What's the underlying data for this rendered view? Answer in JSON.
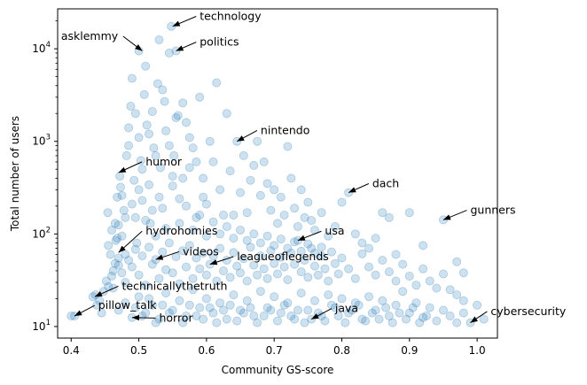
{
  "chart_data": {
    "type": "scatter",
    "xlabel": "Community GS-score",
    "ylabel": "Total number of users",
    "xlim": [
      0.38,
      1.03
    ],
    "ylim": [
      7.5,
      27000
    ],
    "yscale": "log",
    "grid": false,
    "point_color": "#1f77b4",
    "point_alpha": 0.22,
    "x_ticks": [
      {
        "value": 0.4,
        "label": "0.4"
      },
      {
        "value": 0.5,
        "label": "0.5"
      },
      {
        "value": 0.6,
        "label": "0.6"
      },
      {
        "value": 0.7,
        "label": "0.7"
      },
      {
        "value": 0.8,
        "label": "0.8"
      },
      {
        "value": 0.9,
        "label": "0.9"
      },
      {
        "value": 1.0,
        "label": "1.0"
      }
    ],
    "y_ticks": [
      {
        "value": 10,
        "base": "10",
        "exp": "1"
      },
      {
        "value": 100,
        "base": "10",
        "exp": "2"
      },
      {
        "value": 1000,
        "base": "10",
        "exp": "3"
      },
      {
        "value": 10000,
        "base": "10",
        "exp": "4"
      }
    ],
    "annotations": [
      {
        "label": "technology",
        "x": 0.55,
        "y": 17500,
        "text_x": 0.59,
        "text_y": 20500
      },
      {
        "label": "asklemmy",
        "x": 0.505,
        "y": 9500,
        "text_x": 0.385,
        "text_y": 12500
      },
      {
        "label": "politics",
        "x": 0.555,
        "y": 9500,
        "text_x": 0.59,
        "text_y": 10800
      },
      {
        "label": "nintendo",
        "x": 0.645,
        "y": 1000,
        "text_x": 0.68,
        "text_y": 1200
      },
      {
        "label": "humor",
        "x": 0.47,
        "y": 460,
        "text_x": 0.51,
        "text_y": 550
      },
      {
        "label": "dach",
        "x": 0.81,
        "y": 280,
        "text_x": 0.845,
        "text_y": 320
      },
      {
        "label": "gunners",
        "x": 0.95,
        "y": 142,
        "text_x": 0.99,
        "text_y": 165
      },
      {
        "label": "hydrohomies",
        "x": 0.47,
        "y": 63,
        "text_x": 0.51,
        "text_y": 98
      },
      {
        "label": "usa",
        "x": 0.735,
        "y": 85,
        "text_x": 0.775,
        "text_y": 98
      },
      {
        "label": "videos",
        "x": 0.525,
        "y": 53,
        "text_x": 0.565,
        "text_y": 59
      },
      {
        "label": "leagueoflegends",
        "x": 0.605,
        "y": 47,
        "text_x": 0.645,
        "text_y": 52
      },
      {
        "label": "technicallythetruth",
        "x": 0.435,
        "y": 21,
        "text_x": 0.475,
        "text_y": 25
      },
      {
        "label": "pillow_talk",
        "x": 0.405,
        "y": 13,
        "text_x": 0.44,
        "text_y": 15.5
      },
      {
        "label": "java",
        "x": 0.755,
        "y": 12,
        "text_x": 0.79,
        "text_y": 14.3
      },
      {
        "label": "horror",
        "x": 0.49,
        "y": 12.5,
        "text_x": 0.53,
        "text_y": 11.3
      },
      {
        "label": "cybersecurity",
        "x": 0.99,
        "y": 11,
        "text_x": 1.02,
        "text_y": 13.3
      }
    ],
    "points": [
      [
        0.4,
        13
      ],
      [
        0.405,
        13
      ],
      [
        0.432,
        21
      ],
      [
        0.436,
        22
      ],
      [
        0.438,
        17
      ],
      [
        0.442,
        19
      ],
      [
        0.445,
        14
      ],
      [
        0.448,
        24
      ],
      [
        0.452,
        31
      ],
      [
        0.455,
        27
      ],
      [
        0.46,
        35
      ],
      [
        0.462,
        26
      ],
      [
        0.465,
        48
      ],
      [
        0.468,
        90
      ],
      [
        0.47,
        125
      ],
      [
        0.47,
        55
      ],
      [
        0.472,
        420
      ],
      [
        0.475,
        260
      ],
      [
        0.478,
        180
      ],
      [
        0.48,
        60
      ],
      [
        0.482,
        700
      ],
      [
        0.485,
        1400
      ],
      [
        0.488,
        2400
      ],
      [
        0.49,
        4800
      ],
      [
        0.493,
        380
      ],
      [
        0.495,
        150
      ],
      [
        0.497,
        80
      ],
      [
        0.5,
        9500
      ],
      [
        0.5,
        1100
      ],
      [
        0.503,
        620
      ],
      [
        0.505,
        230
      ],
      [
        0.508,
        3200
      ],
      [
        0.51,
        6500
      ],
      [
        0.512,
        1500
      ],
      [
        0.515,
        340
      ],
      [
        0.517,
        130
      ],
      [
        0.52,
        2100
      ],
      [
        0.522,
        850
      ],
      [
        0.525,
        95
      ],
      [
        0.528,
        4200
      ],
      [
        0.53,
        12500
      ],
      [
        0.532,
        520
      ],
      [
        0.535,
        190
      ],
      [
        0.538,
        2700
      ],
      [
        0.54,
        1300
      ],
      [
        0.545,
        9000
      ],
      [
        0.548,
        17500
      ],
      [
        0.55,
        330
      ],
      [
        0.552,
        700
      ],
      [
        0.555,
        9500
      ],
      [
        0.558,
        1900
      ],
      [
        0.56,
        240
      ],
      [
        0.565,
        2600
      ],
      [
        0.57,
        1600
      ],
      [
        0.575,
        520
      ],
      [
        0.58,
        850
      ],
      [
        0.585,
        150
      ],
      [
        0.59,
        3000
      ],
      [
        0.595,
        400
      ],
      [
        0.6,
        210
      ],
      [
        0.605,
        1000
      ],
      [
        0.61,
        600
      ],
      [
        0.615,
        4300
      ],
      [
        0.62,
        300
      ],
      [
        0.625,
        160
      ],
      [
        0.63,
        2000
      ],
      [
        0.635,
        480
      ],
      [
        0.64,
        160
      ],
      [
        0.645,
        1000
      ],
      [
        0.65,
        280
      ],
      [
        0.655,
        700
      ],
      [
        0.66,
        170
      ],
      [
        0.665,
        380
      ],
      [
        0.67,
        550
      ],
      [
        0.675,
        1000
      ],
      [
        0.68,
        260
      ],
      [
        0.685,
        600
      ],
      [
        0.69,
        350
      ],
      [
        0.695,
        180
      ],
      [
        0.7,
        300
      ],
      [
        0.705,
        130
      ],
      [
        0.71,
        250
      ],
      [
        0.715,
        160
      ],
      [
        0.72,
        880
      ],
      [
        0.725,
        400
      ],
      [
        0.73,
        190
      ],
      [
        0.735,
        120
      ],
      [
        0.74,
        300
      ],
      [
        0.745,
        150
      ],
      [
        0.75,
        220
      ],
      [
        0.755,
        140
      ],
      [
        0.76,
        110
      ],
      [
        0.77,
        170
      ],
      [
        0.78,
        95
      ],
      [
        0.79,
        120
      ],
      [
        0.8,
        220
      ],
      [
        0.81,
        280
      ],
      [
        0.82,
        100
      ],
      [
        0.83,
        80
      ],
      [
        0.84,
        70
      ],
      [
        0.85,
        90
      ],
      [
        0.86,
        170
      ],
      [
        0.87,
        150
      ],
      [
        0.88,
        60
      ],
      [
        0.9,
        170
      ],
      [
        0.92,
        75
      ],
      [
        0.95,
        142
      ],
      [
        0.97,
        50
      ],
      [
        0.98,
        38
      ],
      [
        0.47,
        46
      ],
      [
        0.475,
        38
      ],
      [
        0.48,
        30
      ],
      [
        0.485,
        52
      ],
      [
        0.49,
        44
      ],
      [
        0.495,
        68
      ],
      [
        0.5,
        36
      ],
      [
        0.505,
        58
      ],
      [
        0.51,
        28
      ],
      [
        0.515,
        72
      ],
      [
        0.52,
        47
      ],
      [
        0.525,
        53
      ],
      [
        0.53,
        33
      ],
      [
        0.535,
        64
      ],
      [
        0.54,
        41
      ],
      [
        0.545,
        80
      ],
      [
        0.55,
        38
      ],
      [
        0.555,
        57
      ],
      [
        0.56,
        29
      ],
      [
        0.565,
        66
      ],
      [
        0.57,
        44
      ],
      [
        0.575,
        75
      ],
      [
        0.58,
        33
      ],
      [
        0.585,
        55
      ],
      [
        0.59,
        42
      ],
      [
        0.595,
        62
      ],
      [
        0.6,
        36
      ],
      [
        0.605,
        47
      ],
      [
        0.61,
        58
      ],
      [
        0.615,
        31
      ],
      [
        0.62,
        70
      ],
      [
        0.625,
        40
      ],
      [
        0.63,
        52
      ],
      [
        0.635,
        34
      ],
      [
        0.64,
        63
      ],
      [
        0.645,
        45
      ],
      [
        0.65,
        38
      ],
      [
        0.655,
        54
      ],
      [
        0.66,
        31
      ],
      [
        0.665,
        72
      ],
      [
        0.67,
        46
      ],
      [
        0.675,
        36
      ],
      [
        0.68,
        58
      ],
      [
        0.685,
        42
      ],
      [
        0.69,
        33
      ],
      [
        0.695,
        66
      ],
      [
        0.7,
        48
      ],
      [
        0.705,
        37
      ],
      [
        0.71,
        56
      ],
      [
        0.715,
        44
      ],
      [
        0.72,
        32
      ],
      [
        0.725,
        62
      ],
      [
        0.73,
        47
      ],
      [
        0.735,
        85
      ],
      [
        0.74,
        39
      ],
      [
        0.745,
        52
      ],
      [
        0.75,
        34
      ],
      [
        0.755,
        70
      ],
      [
        0.76,
        45
      ],
      [
        0.765,
        36
      ],
      [
        0.77,
        58
      ],
      [
        0.775,
        42
      ],
      [
        0.78,
        31
      ],
      [
        0.785,
        64
      ],
      [
        0.79,
        48
      ],
      [
        0.795,
        37
      ],
      [
        0.8,
        55
      ],
      [
        0.81,
        42
      ],
      [
        0.82,
        33
      ],
      [
        0.83,
        61
      ],
      [
        0.84,
        44
      ],
      [
        0.85,
        36
      ],
      [
        0.86,
        52
      ],
      [
        0.87,
        39
      ],
      [
        0.88,
        31
      ],
      [
        0.89,
        47
      ],
      [
        0.9,
        35
      ],
      [
        0.91,
        28
      ],
      [
        0.92,
        42
      ],
      [
        0.93,
        31
      ],
      [
        0.94,
        26
      ],
      [
        0.95,
        37
      ],
      [
        0.96,
        25
      ],
      [
        0.97,
        22
      ],
      [
        0.98,
        19
      ],
      [
        0.99,
        11
      ],
      [
        1.0,
        17
      ],
      [
        1.01,
        12
      ],
      [
        0.47,
        15
      ],
      [
        0.48,
        18
      ],
      [
        0.49,
        12.5
      ],
      [
        0.5,
        21
      ],
      [
        0.51,
        14
      ],
      [
        0.52,
        17
      ],
      [
        0.53,
        12
      ],
      [
        0.54,
        23
      ],
      [
        0.55,
        15
      ],
      [
        0.56,
        19
      ],
      [
        0.57,
        13
      ],
      [
        0.58,
        25
      ],
      [
        0.59,
        16
      ],
      [
        0.6,
        20
      ],
      [
        0.61,
        14
      ],
      [
        0.62,
        18
      ],
      [
        0.63,
        12
      ],
      [
        0.64,
        22
      ],
      [
        0.65,
        15
      ],
      [
        0.66,
        19
      ],
      [
        0.67,
        13
      ],
      [
        0.68,
        24
      ],
      [
        0.69,
        16
      ],
      [
        0.7,
        21
      ],
      [
        0.71,
        14
      ],
      [
        0.72,
        18
      ],
      [
        0.73,
        12
      ],
      [
        0.74,
        23
      ],
      [
        0.75,
        15
      ],
      [
        0.755,
        12
      ],
      [
        0.76,
        19
      ],
      [
        0.77,
        13
      ],
      [
        0.78,
        22
      ],
      [
        0.79,
        16
      ],
      [
        0.8,
        20
      ],
      [
        0.81,
        14
      ],
      [
        0.82,
        18
      ],
      [
        0.83,
        12
      ],
      [
        0.84,
        21
      ],
      [
        0.85,
        15
      ],
      [
        0.86,
        19
      ],
      [
        0.87,
        13
      ],
      [
        0.88,
        17
      ],
      [
        0.89,
        24
      ],
      [
        0.9,
        14
      ],
      [
        0.91,
        18
      ],
      [
        0.92,
        12.5
      ],
      [
        0.93,
        16
      ],
      [
        0.94,
        11.5
      ],
      [
        0.95,
        15
      ],
      [
        0.96,
        13
      ],
      [
        0.97,
        11
      ],
      [
        0.98,
        14
      ],
      [
        0.495,
        16
      ],
      [
        0.505,
        13
      ],
      [
        0.515,
        20
      ],
      [
        0.525,
        11
      ],
      [
        0.535,
        17
      ],
      [
        0.545,
        14
      ],
      [
        0.565,
        11
      ],
      [
        0.575,
        17
      ],
      [
        0.585,
        13
      ],
      [
        0.595,
        12
      ],
      [
        0.605,
        16
      ],
      [
        0.615,
        11
      ],
      [
        0.625,
        15
      ],
      [
        0.635,
        17
      ],
      [
        0.645,
        11.5
      ],
      [
        0.655,
        14
      ],
      [
        0.665,
        16
      ],
      [
        0.675,
        11
      ],
      [
        0.685,
        13
      ],
      [
        0.695,
        15
      ],
      [
        0.705,
        11.5
      ],
      [
        0.715,
        17
      ],
      [
        0.725,
        13
      ],
      [
        0.735,
        15
      ],
      [
        0.745,
        11
      ],
      [
        0.765,
        14
      ],
      [
        0.775,
        11.5
      ],
      [
        0.785,
        17
      ],
      [
        0.795,
        13
      ],
      [
        0.805,
        11
      ],
      [
        0.815,
        15
      ],
      [
        0.825,
        17
      ],
      [
        0.835,
        11.5
      ],
      [
        0.845,
        14
      ],
      [
        0.855,
        12
      ],
      [
        0.865,
        16
      ],
      [
        0.875,
        11
      ],
      [
        0.885,
        14
      ],
      [
        0.895,
        12
      ],
      [
        0.905,
        16
      ],
      [
        0.915,
        11
      ],
      [
        0.925,
        13
      ],
      [
        0.48,
        150
      ],
      [
        0.49,
        210
      ],
      [
        0.5,
        300
      ],
      [
        0.51,
        140
      ],
      [
        0.52,
        180
      ],
      [
        0.53,
        250
      ],
      [
        0.54,
        115
      ],
      [
        0.55,
        420
      ],
      [
        0.56,
        130
      ],
      [
        0.57,
        200
      ],
      [
        0.58,
        110
      ],
      [
        0.59,
        160
      ],
      [
        0.6,
        95
      ],
      [
        0.61,
        135
      ],
      [
        0.62,
        100
      ],
      [
        0.63,
        120
      ],
      [
        0.64,
        90
      ],
      [
        0.65,
        110
      ],
      [
        0.66,
        85
      ],
      [
        0.67,
        100
      ],
      [
        0.68,
        80
      ],
      [
        0.69,
        95
      ],
      [
        0.7,
        75
      ],
      [
        0.71,
        88
      ],
      [
        0.72,
        70
      ],
      [
        0.73,
        82
      ],
      [
        0.74,
        65
      ],
      [
        0.75,
        78
      ],
      [
        0.76,
        62
      ],
      [
        0.77,
        72
      ],
      [
        0.485,
        900
      ],
      [
        0.495,
        2000
      ],
      [
        0.505,
        500
      ],
      [
        0.515,
        1200
      ],
      [
        0.525,
        700
      ],
      [
        0.535,
        3600
      ],
      [
        0.545,
        900
      ],
      [
        0.555,
        1800
      ],
      [
        0.565,
        400
      ],
      [
        0.575,
        1100
      ],
      [
        0.585,
        600
      ],
      [
        0.595,
        250
      ],
      [
        0.465,
        130
      ],
      [
        0.475,
        95
      ],
      [
        0.455,
        75
      ],
      [
        0.46,
        110
      ],
      [
        0.458,
        60
      ],
      [
        0.462,
        40
      ],
      [
        0.466,
        85
      ],
      [
        0.454,
        170
      ],
      [
        0.468,
        250
      ],
      [
        0.473,
        320
      ]
    ]
  }
}
